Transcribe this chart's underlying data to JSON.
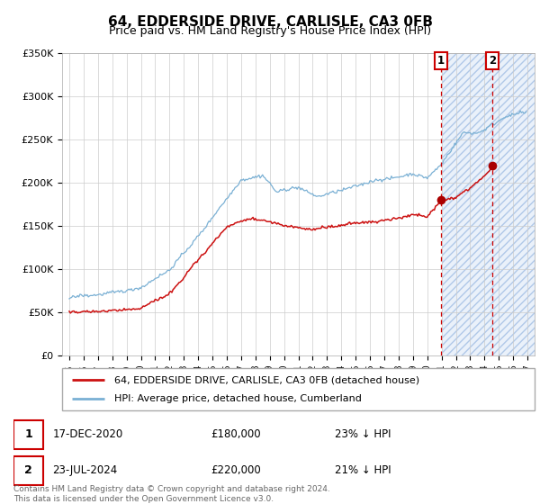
{
  "title": "64, EDDERSIDE DRIVE, CARLISLE, CA3 0FB",
  "subtitle": "Price paid vs. HM Land Registry's House Price Index (HPI)",
  "red_label": "64, EDDERSIDE DRIVE, CARLISLE, CA3 0FB (detached house)",
  "blue_label": "HPI: Average price, detached house, Cumberland",
  "marker1_date": "17-DEC-2020",
  "marker1_price": "£180,000",
  "marker1_hpi": "23% ↓ HPI",
  "marker2_date": "23-JUL-2024",
  "marker2_price": "£220,000",
  "marker2_hpi": "21% ↓ HPI",
  "footer": "Contains HM Land Registry data © Crown copyright and database right 2024.\nThis data is licensed under the Open Government Licence v3.0.",
  "ylim": [
    0,
    350000
  ],
  "yticks": [
    0,
    50000,
    100000,
    150000,
    200000,
    250000,
    300000,
    350000
  ],
  "ytick_labels": [
    "£0",
    "£50K",
    "£100K",
    "£150K",
    "£200K",
    "£250K",
    "£300K",
    "£350K"
  ],
  "marker1_x_year": 2020.96,
  "marker2_x_year": 2024.55,
  "marker1_y": 180000,
  "marker2_y": 220000,
  "hatch_start_year": 2021.0,
  "xlim_min": 1994.5,
  "xlim_max": 2027.5,
  "xtick_start": 1995,
  "xtick_end": 2027,
  "red_color": "#cc1111",
  "blue_color": "#7ab0d4",
  "hatch_bg_color": "#dce8f8",
  "grid_color": "#cccccc",
  "legend_border_color": "#999999",
  "marker_box_color": "#cc0000",
  "title_fontsize": 11,
  "subtitle_fontsize": 9,
  "tick_fontsize": 8,
  "legend_fontsize": 8,
  "table_fontsize": 8.5,
  "footer_fontsize": 6.5
}
